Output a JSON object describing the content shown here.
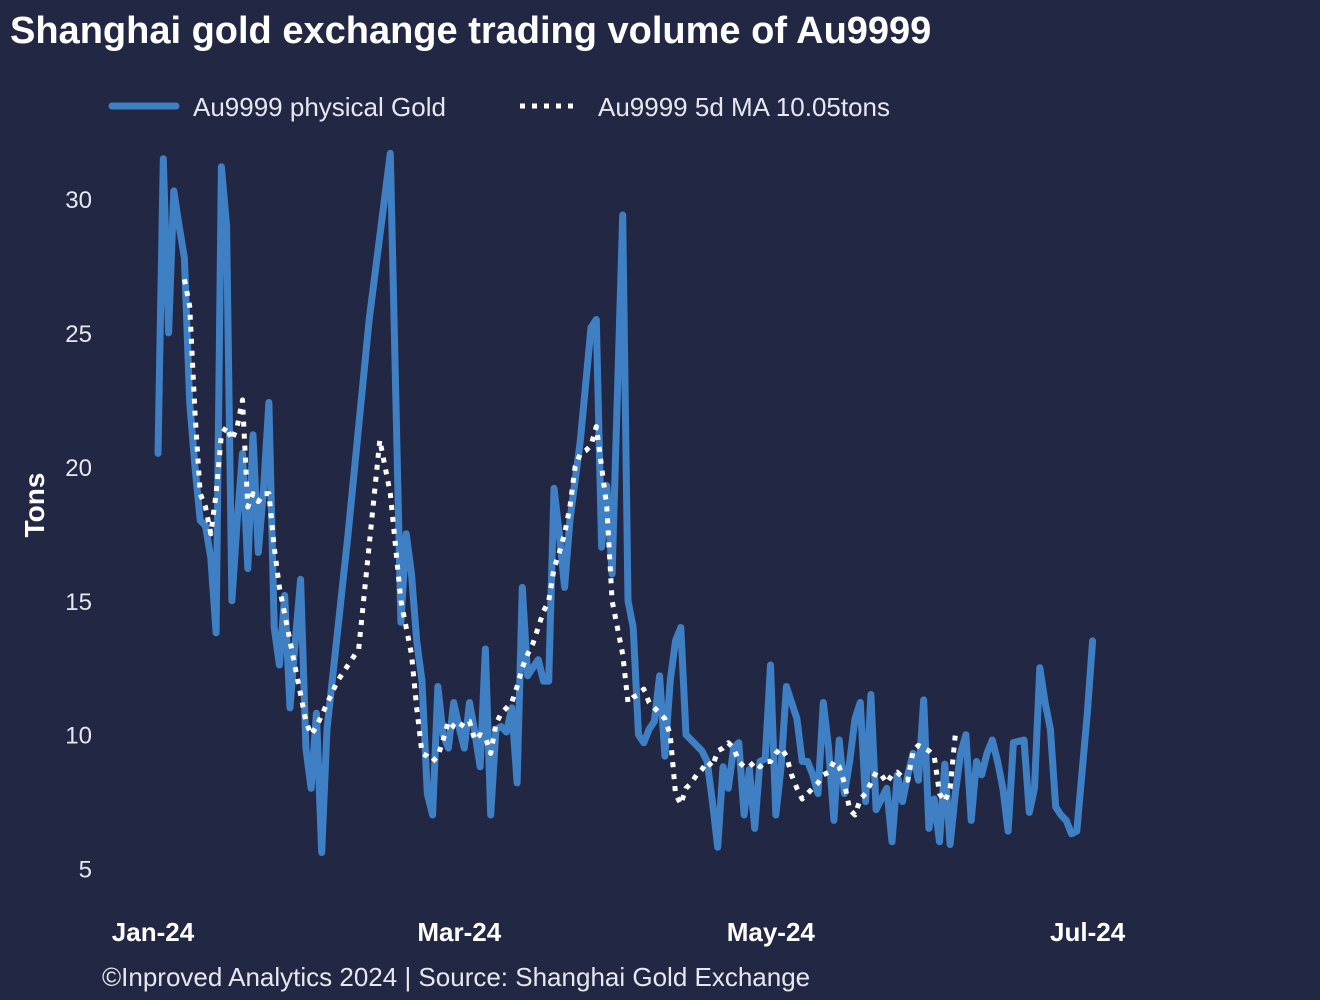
{
  "chart_data": {
    "type": "line",
    "title": "Shanghai gold exchange trading volume of Au9999",
    "ylabel": "Tons",
    "xlabel": "",
    "ylim": [
      4.5,
      32.5
    ],
    "yticks": [
      5,
      10,
      15,
      20,
      25,
      30
    ],
    "xticks": [
      {
        "label": "Jan-24",
        "x": 0
      },
      {
        "label": "Mar-24",
        "x": 58
      },
      {
        "label": "May-24",
        "x": 117
      },
      {
        "label": "Jul-24",
        "x": 177
      }
    ],
    "xlim": [
      0,
      214
    ],
    "grid": false,
    "legend_position": "top-left",
    "series": [
      {
        "name": "Au9999 physical Gold",
        "style": "solid",
        "color": "#3f7fc4",
        "points": [
          [
            0,
            20.5
          ],
          [
            1,
            31.5
          ],
          [
            2,
            25
          ],
          [
            3,
            30.3
          ],
          [
            4,
            29
          ],
          [
            5,
            27.8
          ],
          [
            6,
            22.4
          ],
          [
            7,
            20
          ],
          [
            8,
            18
          ],
          [
            9,
            17.8
          ],
          [
            10,
            16.6
          ],
          [
            11,
            13.8
          ],
          [
            12,
            31.2
          ],
          [
            13,
            29
          ],
          [
            14,
            15
          ],
          [
            15,
            18
          ],
          [
            16,
            20.5
          ],
          [
            17,
            16.2
          ],
          [
            18,
            21.2
          ],
          [
            19,
            16.8
          ],
          [
            20,
            19.2
          ],
          [
            21,
            22.4
          ],
          [
            22,
            14
          ],
          [
            23,
            12.6
          ],
          [
            24,
            15.2
          ],
          [
            25,
            11
          ],
          [
            26,
            13.5
          ],
          [
            27,
            15.8
          ],
          [
            28,
            9.5
          ],
          [
            29,
            8
          ],
          [
            30,
            10.8
          ],
          [
            31,
            5.6
          ],
          [
            32,
            10.2
          ],
          [
            36,
            17.5
          ],
          [
            40,
            25.5
          ],
          [
            44,
            31.7
          ],
          [
            46,
            14.2
          ],
          [
            47,
            17.5
          ],
          [
            48,
            16
          ],
          [
            49,
            13.5
          ],
          [
            50,
            12
          ],
          [
            51,
            7.8
          ],
          [
            52,
            7
          ],
          [
            53,
            11.8
          ],
          [
            54,
            10
          ],
          [
            55,
            9.5
          ],
          [
            56,
            11.2
          ],
          [
            57,
            10.3
          ],
          [
            58,
            9.5
          ],
          [
            59,
            11.2
          ],
          [
            60,
            10.1
          ],
          [
            61,
            8.8
          ],
          [
            62,
            13.2
          ],
          [
            63,
            7
          ],
          [
            64,
            10.2
          ],
          [
            65,
            10.3
          ],
          [
            66,
            10.1
          ],
          [
            67,
            11
          ],
          [
            68,
            8.2
          ],
          [
            69,
            15.5
          ],
          [
            70,
            12.2
          ],
          [
            71,
            12.5
          ],
          [
            72,
            12.8
          ],
          [
            73,
            12
          ],
          [
            74,
            12
          ],
          [
            75,
            19.2
          ],
          [
            76,
            17.5
          ],
          [
            77,
            15.5
          ],
          [
            78,
            18
          ],
          [
            80,
            21
          ],
          [
            82,
            25.2
          ],
          [
            83,
            25.5
          ],
          [
            84,
            17
          ],
          [
            85,
            19.3
          ],
          [
            86,
            16
          ],
          [
            88,
            29.4
          ],
          [
            89,
            15
          ],
          [
            90,
            14
          ],
          [
            91,
            10
          ],
          [
            92,
            9.7
          ],
          [
            93,
            10.2
          ],
          [
            94,
            10.5
          ],
          [
            95,
            12.2
          ],
          [
            96,
            9.2
          ],
          [
            97,
            12
          ],
          [
            98,
            13.5
          ],
          [
            99,
            14
          ],
          [
            100,
            10
          ],
          [
            103,
            9.4
          ],
          [
            104,
            9
          ],
          [
            105,
            7.5
          ],
          [
            106,
            5.8
          ],
          [
            107,
            8.8
          ],
          [
            108,
            8
          ],
          [
            109,
            9.5
          ],
          [
            110,
            9.7
          ],
          [
            111,
            7
          ],
          [
            112,
            8.7
          ],
          [
            113,
            6.5
          ],
          [
            114,
            9
          ],
          [
            115,
            9.1
          ],
          [
            116,
            12.6
          ],
          [
            117,
            7
          ],
          [
            118,
            8.8
          ],
          [
            119,
            11.8
          ],
          [
            120,
            11.2
          ],
          [
            121,
            10.6
          ],
          [
            122,
            9
          ],
          [
            123,
            9
          ],
          [
            124,
            8.5
          ],
          [
            125,
            7.8
          ],
          [
            126,
            11.2
          ],
          [
            127,
            9.5
          ],
          [
            128,
            6.8
          ],
          [
            129,
            9.8
          ],
          [
            130,
            7.8
          ],
          [
            131,
            9
          ],
          [
            132,
            10.6
          ],
          [
            133,
            11.2
          ],
          [
            134,
            7.5
          ],
          [
            135,
            11.5
          ],
          [
            136,
            7.2
          ],
          [
            137,
            7.6
          ],
          [
            138,
            8
          ],
          [
            139,
            6
          ],
          [
            140,
            8.5
          ],
          [
            141,
            7.5
          ],
          [
            142,
            8.5
          ],
          [
            143,
            9.3
          ],
          [
            144,
            8.3
          ],
          [
            145,
            11.3
          ],
          [
            146,
            6.5
          ],
          [
            147,
            7.6
          ],
          [
            148,
            6
          ],
          [
            149,
            8.9
          ],
          [
            150,
            5.9
          ],
          [
            151,
            7.8
          ],
          [
            152,
            9.3
          ],
          [
            153,
            10
          ],
          [
            154,
            6.8
          ],
          [
            155,
            9
          ],
          [
            156,
            8.5
          ],
          [
            157,
            9.3
          ],
          [
            158,
            9.8
          ],
          [
            159,
            9
          ],
          [
            160,
            8
          ],
          [
            161,
            6.4
          ],
          [
            162,
            9.7
          ],
          [
            164,
            9.8
          ],
          [
            165,
            7.1
          ],
          [
            166,
            8
          ],
          [
            167,
            12.5
          ],
          [
            168,
            11.2
          ],
          [
            169,
            10.2
          ],
          [
            170,
            7.3
          ],
          [
            171,
            7
          ],
          [
            172,
            6.8
          ],
          [
            173,
            6.3
          ],
          [
            174,
            6.4
          ],
          [
            176,
            10.8
          ],
          [
            177,
            13.5
          ]
        ]
      },
      {
        "name": "Au9999 5d MA 10.05tons",
        "style": "dotted",
        "color": "#ffffff",
        "points": [
          [
            5,
            27
          ],
          [
            6,
            26
          ],
          [
            7,
            22
          ],
          [
            8,
            19
          ],
          [
            9,
            18.5
          ],
          [
            10,
            17.5
          ],
          [
            11,
            19
          ],
          [
            12,
            21.2
          ],
          [
            13,
            21.5
          ],
          [
            14,
            21
          ],
          [
            15,
            21.5
          ],
          [
            16,
            22.5
          ],
          [
            17,
            18.5
          ],
          [
            18,
            19
          ],
          [
            19,
            18.7
          ],
          [
            20,
            19
          ],
          [
            21,
            19
          ],
          [
            22,
            17
          ],
          [
            23,
            15.5
          ],
          [
            24,
            14.5
          ],
          [
            25,
            13.5
          ],
          [
            26,
            12.5
          ],
          [
            27,
            11.5
          ],
          [
            28,
            10.5
          ],
          [
            29,
            10
          ],
          [
            30,
            10.3
          ],
          [
            34,
            12
          ],
          [
            38,
            13.2
          ],
          [
            42,
            21
          ],
          [
            44,
            19
          ],
          [
            46,
            15
          ],
          [
            48,
            13
          ],
          [
            49,
            11
          ],
          [
            50,
            9.3
          ],
          [
            51,
            9.2
          ],
          [
            52,
            9
          ],
          [
            53,
            9.2
          ],
          [
            54,
            9.8
          ],
          [
            55,
            10.5
          ],
          [
            56,
            10.3
          ],
          [
            57,
            10.2
          ],
          [
            58,
            10.5
          ],
          [
            59,
            10.5
          ],
          [
            60,
            9.8
          ],
          [
            61,
            10
          ],
          [
            62,
            9.9
          ],
          [
            63,
            9.3
          ],
          [
            64,
            10.4
          ],
          [
            65,
            10.8
          ],
          [
            66,
            11
          ],
          [
            67,
            11.2
          ],
          [
            68,
            11.8
          ],
          [
            69,
            12.5
          ],
          [
            70,
            13
          ],
          [
            71,
            13.4
          ],
          [
            72,
            14
          ],
          [
            73,
            14.6
          ],
          [
            74,
            15
          ],
          [
            75,
            16.2
          ],
          [
            76,
            16.8
          ],
          [
            77,
            17.5
          ],
          [
            78,
            18.5
          ],
          [
            79,
            20
          ],
          [
            80,
            20.5
          ],
          [
            81,
            20.6
          ],
          [
            82,
            20.8
          ],
          [
            83,
            21.5
          ],
          [
            84,
            20
          ],
          [
            85,
            18.5
          ],
          [
            86,
            15
          ],
          [
            88,
            13
          ],
          [
            89,
            11.2
          ],
          [
            90,
            11.4
          ],
          [
            91,
            11.5
          ],
          [
            92,
            11.7
          ],
          [
            93,
            11.2
          ],
          [
            94,
            11
          ],
          [
            95,
            10.8
          ],
          [
            96,
            10.6
          ],
          [
            97,
            10
          ],
          [
            98,
            7.8
          ],
          [
            99,
            7.4
          ],
          [
            100,
            8
          ],
          [
            101,
            8.2
          ],
          [
            102,
            8.5
          ],
          [
            103,
            8.7
          ],
          [
            104,
            9
          ],
          [
            105,
            8.8
          ],
          [
            106,
            9.4
          ],
          [
            107,
            9.5
          ],
          [
            108,
            9.7
          ],
          [
            109,
            9.5
          ],
          [
            110,
            9
          ],
          [
            111,
            8.8
          ],
          [
            112,
            8.8
          ],
          [
            113,
            9
          ],
          [
            114,
            8.8
          ],
          [
            115,
            9
          ],
          [
            116,
            9
          ],
          [
            117,
            9.3
          ],
          [
            118,
            9.5
          ],
          [
            119,
            9.2
          ],
          [
            120,
            8.5
          ],
          [
            121,
            8
          ],
          [
            122,
            7.6
          ],
          [
            123,
            7.8
          ],
          [
            124,
            8
          ],
          [
            125,
            8.2
          ],
          [
            126,
            8.5
          ],
          [
            127,
            8.6
          ],
          [
            128,
            9
          ],
          [
            129,
            8.8
          ],
          [
            130,
            8.2
          ],
          [
            131,
            7.2
          ],
          [
            132,
            7
          ],
          [
            133,
            7.6
          ],
          [
            134,
            7.8
          ],
          [
            135,
            8.2
          ],
          [
            136,
            8.6
          ],
          [
            137,
            8.5
          ],
          [
            138,
            8.2
          ],
          [
            139,
            8.5
          ],
          [
            140,
            8.6
          ],
          [
            141,
            8.4
          ],
          [
            142,
            8.3
          ],
          [
            143,
            9.4
          ],
          [
            144,
            9.6
          ],
          [
            145,
            9.5
          ],
          [
            146,
            9.4
          ],
          [
            147,
            9.2
          ],
          [
            148,
            7.8
          ],
          [
            149,
            7.5
          ],
          [
            150,
            8
          ],
          [
            151,
            10
          ]
        ]
      }
    ],
    "footer": "©Inproved Analytics 2024 | Source: Shanghai Gold Exchange"
  }
}
